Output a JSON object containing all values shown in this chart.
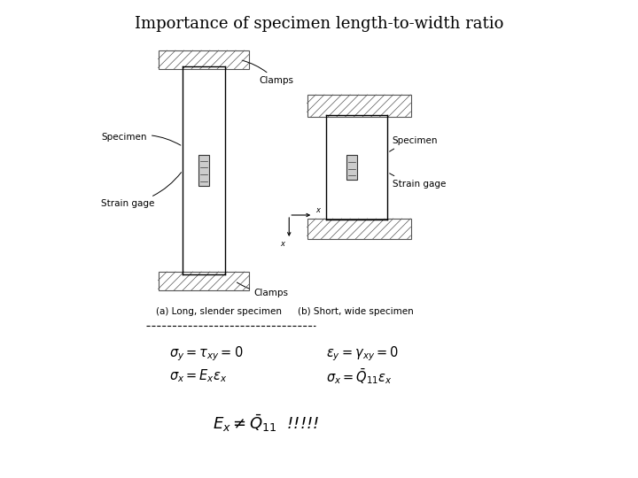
{
  "title": "Importance of specimen length-to-width ratio",
  "title_fontsize": 13,
  "background_color": "#ffffff",
  "fig_width": 7.2,
  "fig_height": 5.4,
  "dpi": 100,
  "label_a": "(a) Long, slender specimen",
  "label_b": "(b) Short, wide specimen",
  "label_specimen_a": "Specimen",
  "label_straingageA": "Strain gage",
  "label_clamps_top": "Clamps",
  "label_clamps_bot": "Clamps",
  "label_specimen_b": "Specimen",
  "label_straingageB": "Strain gage",
  "line_color": "#000000",
  "hatch_color": "#555555",
  "eq_left_1": "$\\sigma_y=\\tau_{xy}=0$",
  "eq_left_2": "$\\sigma_x=E_x\\varepsilon_x$",
  "eq_right_1": "$\\varepsilon_y=\\gamma_{xy}=0$",
  "eq_right_2": "$\\sigma_x=\\bar{Q}_{11}\\varepsilon_x$",
  "eq_bottom": "$E_x\\neq\\bar{Q}_{11}$"
}
